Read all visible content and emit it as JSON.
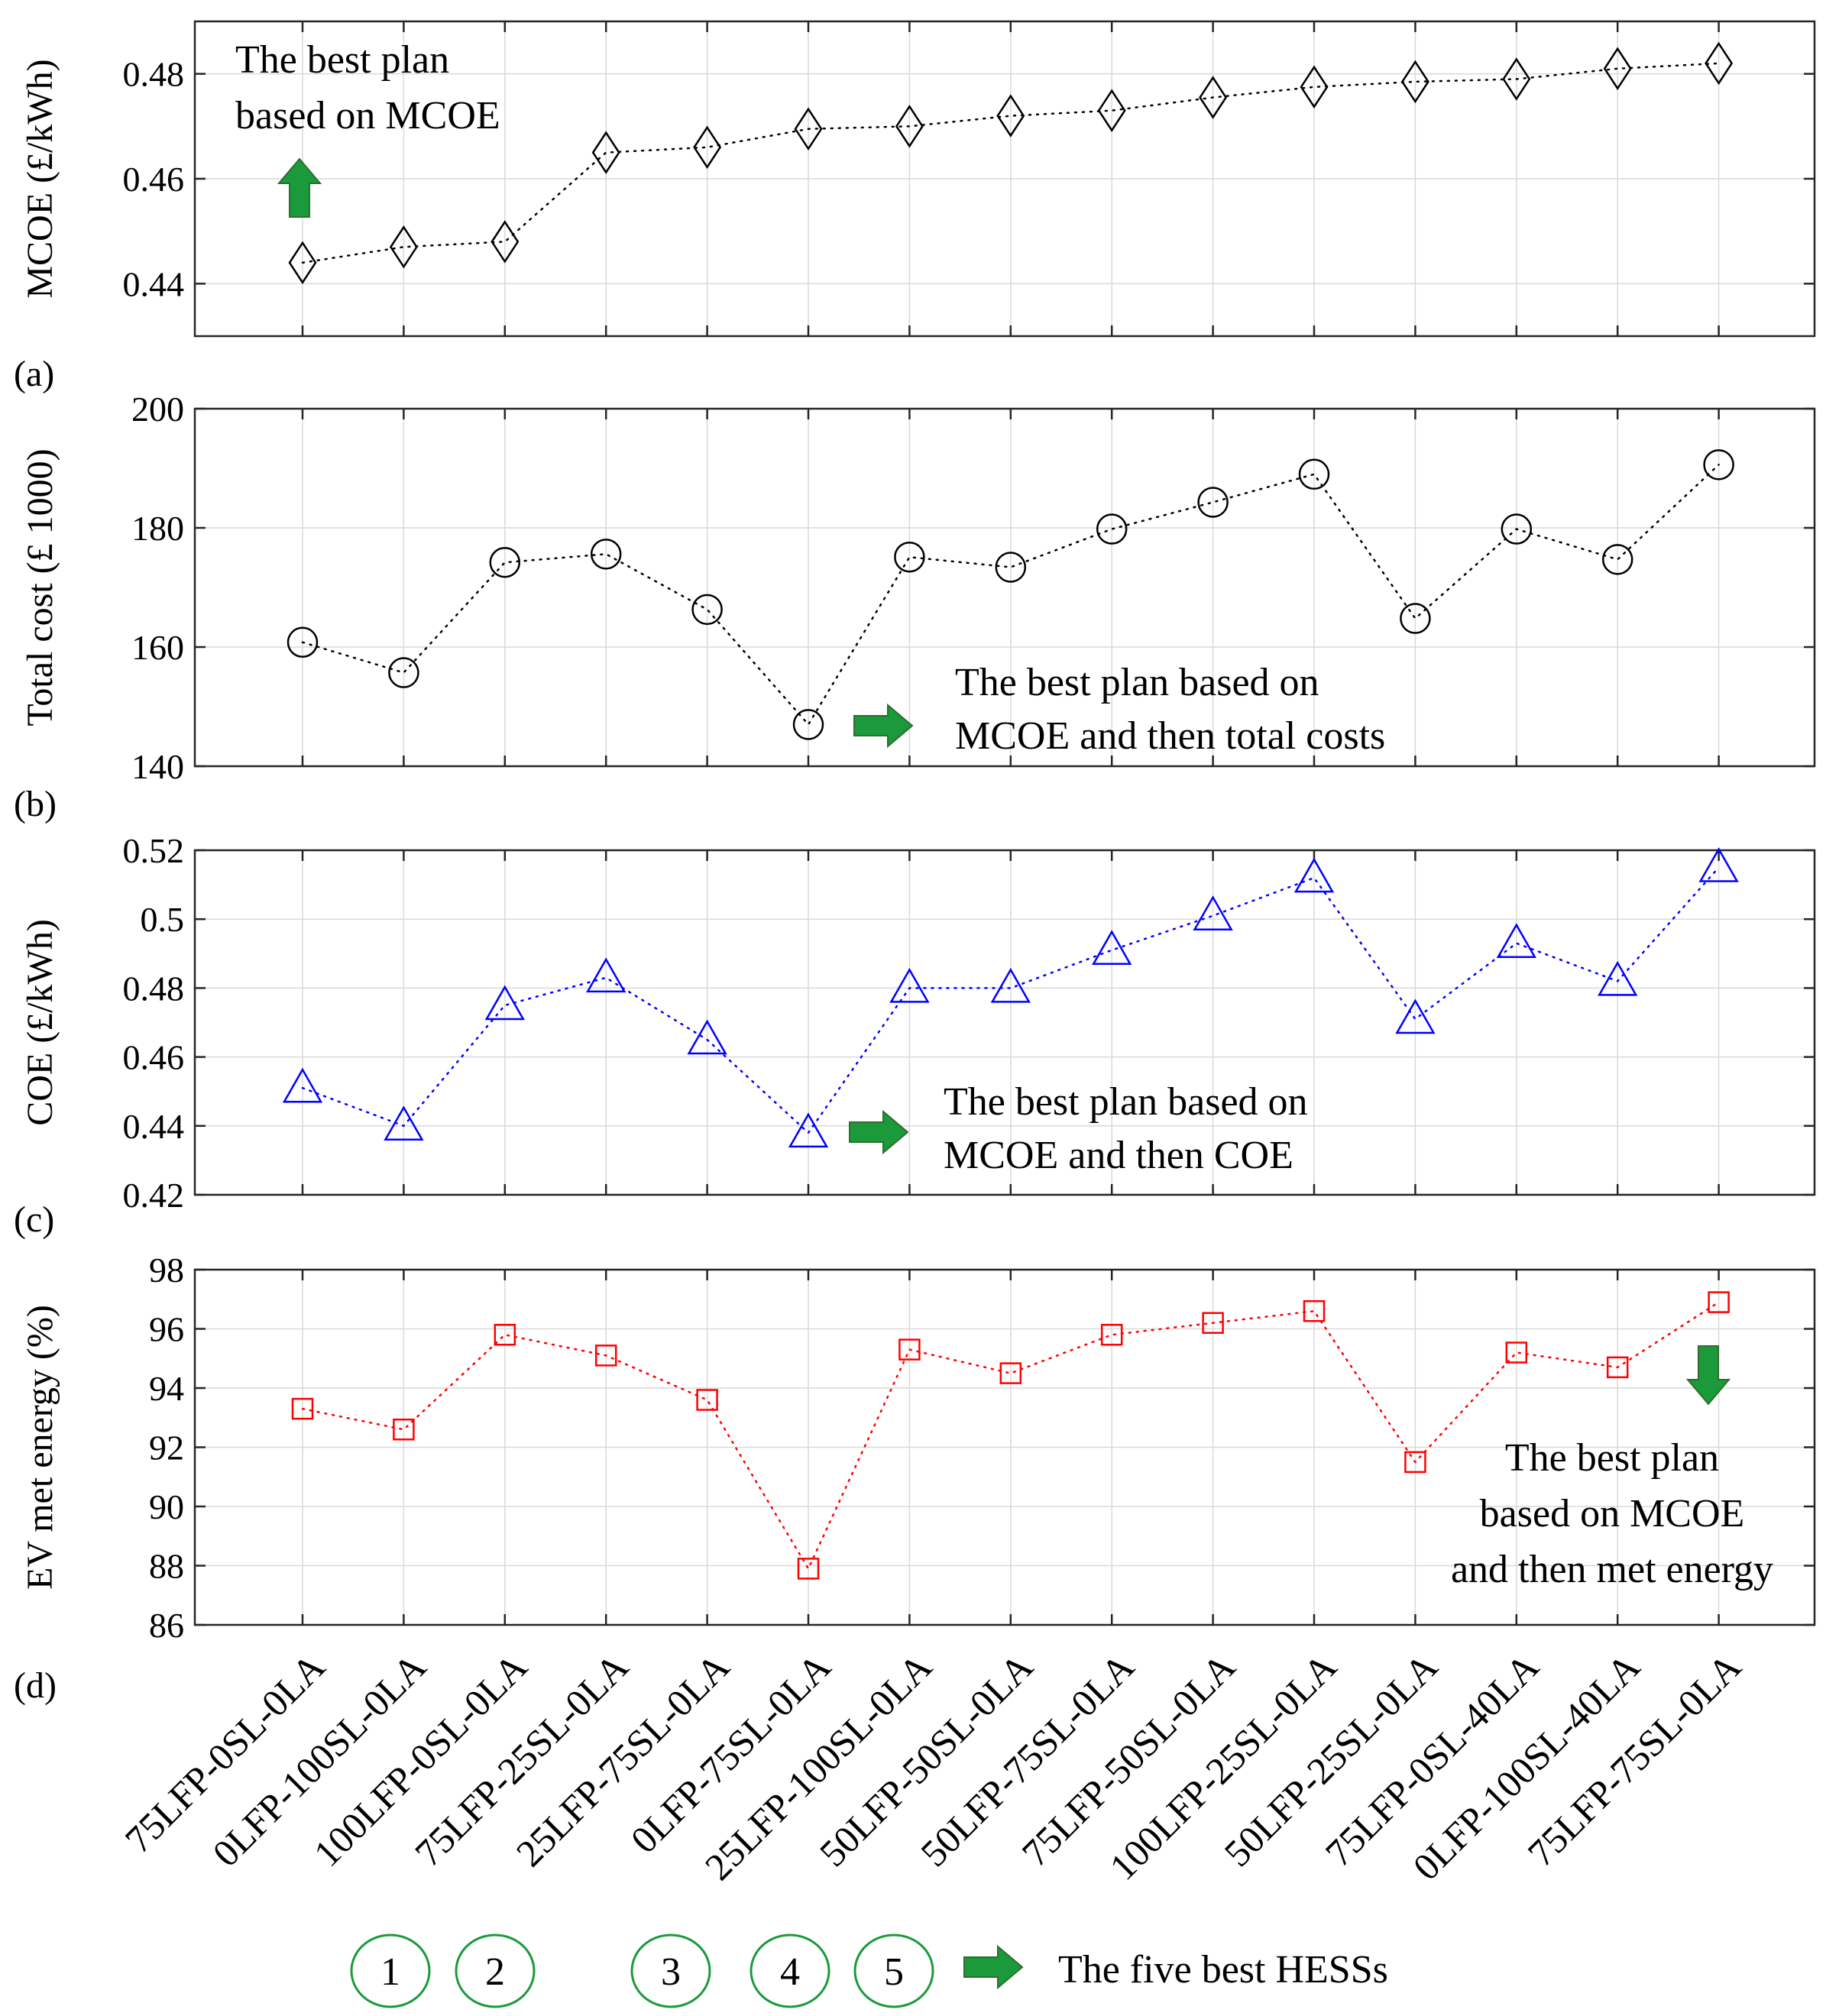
{
  "categories": [
    "75LFP-0SL-0LA",
    "0LFP-100SL-0LA",
    "100LFP-0SL-0LA",
    "75LFP-25SL-0LA",
    "25LFP-75SL-0LA",
    "0LFP-75SL-0LA",
    "25LFP-100SL-0LA",
    "50LFP-50SL-0LA",
    "50LFP-75SL-0LA",
    "75LFP-50SL-0LA",
    "100LFP-25SL-0LA",
    "50LFP-25SL-0LA",
    "75LFP-0SL-40LA",
    "0LFP-100SL-40LA",
    "75LFP-75SL-0LA"
  ],
  "colors": {
    "arrow": "#1a9a3a",
    "circle": "#1a9a3a",
    "mcoe": "#000000",
    "cost": "#000000",
    "coe": "#0000ff",
    "met": "#ff0000"
  },
  "chart_data": [
    {
      "id": "a",
      "type": "line",
      "panel_label": "(a)",
      "marker": "diamond",
      "color": "#000000",
      "ylabel": "MCOE (£/kWh)",
      "ylim": [
        0.43,
        0.49
      ],
      "yticks": [
        0.44,
        0.46,
        0.48
      ],
      "ytick_labels": [
        "0.44",
        "0.46",
        "0.48"
      ],
      "values": [
        0.444,
        0.447,
        0.448,
        0.465,
        0.466,
        0.4695,
        0.47,
        0.472,
        0.473,
        0.4755,
        0.4775,
        0.4785,
        0.479,
        0.481,
        0.482
      ],
      "annotation": {
        "lines": [
          "The best plan",
          "based on MCOE"
        ],
        "arrow": "up",
        "anchor_category": 0
      }
    },
    {
      "id": "b",
      "type": "line",
      "panel_label": "(b)",
      "marker": "circle",
      "color": "#000000",
      "ylabel": "Total cost (£ 1000)",
      "ylim": [
        140,
        200
      ],
      "yticks": [
        140,
        160,
        180,
        200
      ],
      "ytick_labels": [
        "140",
        "160",
        "180",
        "200"
      ],
      "values": [
        160.8,
        155.7,
        174.2,
        175.6,
        166.3,
        147.0,
        175.1,
        173.4,
        179.8,
        184.3,
        189.0,
        164.8,
        179.8,
        174.7,
        190.6
      ],
      "annotation": {
        "lines": [
          "The best plan based on",
          "MCOE and then total costs"
        ],
        "arrow": "right",
        "anchor_category": 5
      }
    },
    {
      "id": "c",
      "type": "line",
      "panel_label": "(c)",
      "marker": "triangle",
      "color": "#0000ff",
      "ylabel": "COE (£/kWh)",
      "ylim": [
        0.42,
        0.52
      ],
      "yticks": [
        0.42,
        0.44,
        0.46,
        0.48,
        0.5,
        0.52
      ],
      "ytick_labels": [
        "0.42",
        "0.44",
        "0.46",
        "0.48",
        "0.5",
        "0.52"
      ],
      "values": [
        0.451,
        0.44,
        0.475,
        0.483,
        0.465,
        0.438,
        0.48,
        0.48,
        0.491,
        0.501,
        0.512,
        0.471,
        0.493,
        0.482,
        0.515
      ],
      "annotation": {
        "lines": [
          "The best plan based on",
          "MCOE and then COE"
        ],
        "arrow": "right",
        "anchor_category": 5
      }
    },
    {
      "id": "d",
      "type": "line",
      "panel_label": "(d)",
      "marker": "square",
      "color": "#ff0000",
      "ylabel": "EV met energy (%)",
      "ylim": [
        86,
        98
      ],
      "yticks": [
        86,
        88,
        90,
        92,
        94,
        96,
        98
      ],
      "ytick_labels": [
        "86",
        "88",
        "90",
        "92",
        "94",
        "96",
        "98"
      ],
      "values": [
        93.3,
        92.6,
        95.8,
        95.1,
        93.6,
        87.9,
        95.3,
        94.5,
        95.8,
        96.2,
        96.6,
        91.5,
        95.2,
        94.7,
        96.9
      ],
      "annotation": {
        "lines": [
          "The best plan",
          "based on MCOE",
          "and then met energy"
        ],
        "arrow": "down",
        "anchor_category": 14
      }
    }
  ],
  "legend": {
    "numbers": [
      "1",
      "2",
      "3",
      "4",
      "5"
    ],
    "text": "The five best HESSs"
  }
}
